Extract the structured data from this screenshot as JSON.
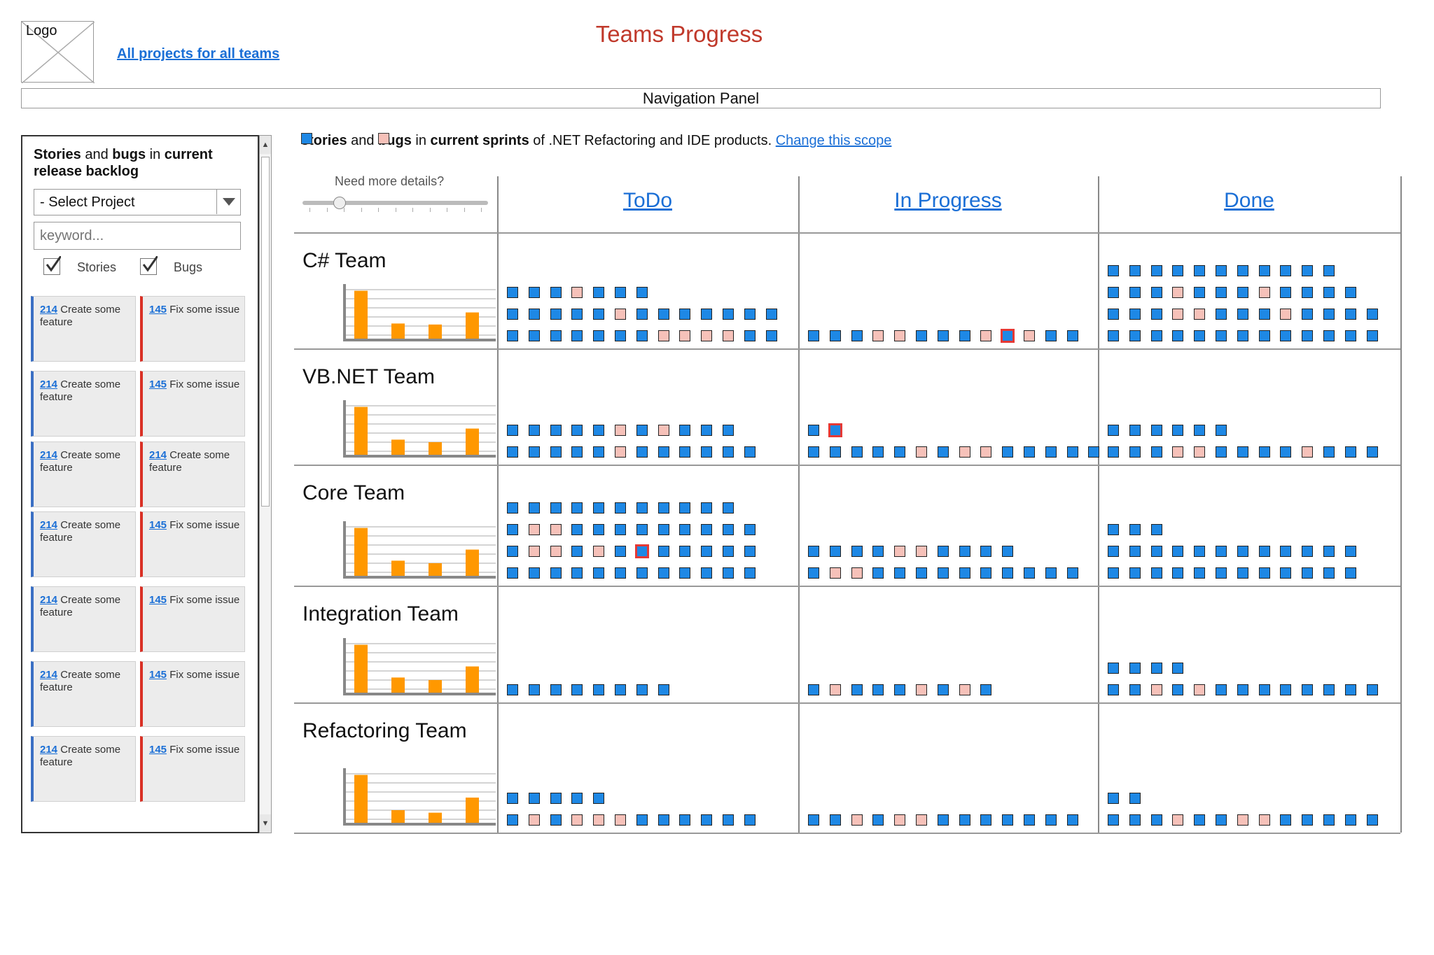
{
  "header": {
    "logo_label": "Logo",
    "all_projects_link": "All projects for all teams",
    "title": "Teams Progress",
    "nav_panel": "Navigation Panel"
  },
  "sidebar": {
    "title_parts": [
      "Stories",
      " and ",
      "bugs",
      " in ",
      "current release backlog"
    ],
    "select_value": "- Select Project",
    "keyword_placeholder": "keyword...",
    "filters": [
      {
        "label": "Stories",
        "checked": true
      },
      {
        "label": "Bugs",
        "checked": true
      }
    ],
    "cards": [
      {
        "type": "story",
        "num": "214",
        "text": "Create some feature"
      },
      {
        "type": "bug",
        "num": "145",
        "text": "Fix some issue"
      },
      {
        "type": "story",
        "num": "214",
        "text": "Create some feature"
      },
      {
        "type": "bug",
        "num": "145",
        "text": "Fix some issue"
      },
      {
        "type": "story",
        "num": "214",
        "text": "Create some feature"
      },
      {
        "type": "bug",
        "num": "214",
        "text": "Create some feature"
      },
      {
        "type": "story",
        "num": "214",
        "text": "Create some feature"
      },
      {
        "type": "bug",
        "num": "145",
        "text": "Fix some issue"
      },
      {
        "type": "story",
        "num": "214",
        "text": "Create some feature"
      },
      {
        "type": "bug",
        "num": "145",
        "text": "Fix some issue"
      },
      {
        "type": "story",
        "num": "214",
        "text": "Create some feature"
      },
      {
        "type": "bug",
        "num": "145",
        "text": "Fix some issue"
      },
      {
        "type": "story",
        "num": "214",
        "text": "Create some feature"
      },
      {
        "type": "bug",
        "num": "145",
        "text": "Fix some issue"
      }
    ]
  },
  "legend": {
    "stories": "stories",
    "and": " and ",
    "bugs": "bugs",
    "in": " in ",
    "current_sprints": "current sprints",
    "rest": " of .NET Refactoring and IDE products. ",
    "change_link": "Change this scope"
  },
  "slider": {
    "label": "Need more details?",
    "level": 0.2
  },
  "columns": [
    "ToDo",
    "In Progress",
    "Done"
  ],
  "colors": {
    "story": "#1e88e5",
    "bug": "#f6c1b9",
    "selected": "#e53935",
    "bar": "#ff9800",
    "title": "#c0392b",
    "link": "#1b6fd6"
  },
  "teams": [
    {
      "name": "C# Team",
      "chart": [
        0.95,
        0.3,
        0.28,
        0.52
      ],
      "todo": [
        "sssbsss",
        "sssssbsssssss",
        "sssssssbbbbss"
      ],
      "inprog": [
        "sssbbsssbXbss"
      ],
      "done": [
        "sssssssssss",
        "sssbsssbssss",
        "sssbbsssbssss",
        "sssssssssssss"
      ]
    },
    {
      "name": "VB.NET Team",
      "chart": [
        0.95,
        0.3,
        0.25,
        0.52
      ],
      "todo": [
        "sssssbsbsss",
        "sssssbssssss"
      ],
      "inprog": [
        "sX",
        "sssssbsbbsssss"
      ],
      "done": [
        "ssssss",
        "sssbbssssbsss"
      ]
    },
    {
      "name": "Core Team",
      "chart": [
        0.95,
        0.3,
        0.25,
        0.52
      ],
      "todo": [
        "sssssssssss",
        "sbbsssssssss",
        "sbbsbsXsssss",
        "ssssssssssss"
      ],
      "inprog": [
        "ssssbbssss",
        "sbbssssssssss"
      ],
      "done": [
        "sss",
        "ssssssssssss",
        "ssssssssssss"
      ]
    },
    {
      "name": "Integration Team",
      "chart": [
        0.95,
        0.3,
        0.25,
        0.52
      ],
      "todo": [
        "ssssssss"
      ],
      "inprog": [
        "sbsssbsbs"
      ],
      "done": [
        "ssss",
        "ssbsbssssssss"
      ]
    },
    {
      "name": "Refactoring Team",
      "chart": [
        0.95,
        0.25,
        0.2,
        0.5
      ],
      "todo": [
        "sssss",
        "sbsbbbssssss"
      ],
      "inprog": [
        "ssbsbbsssssss"
      ],
      "done": [
        "ss",
        "sssbssbbsssss"
      ]
    }
  ]
}
